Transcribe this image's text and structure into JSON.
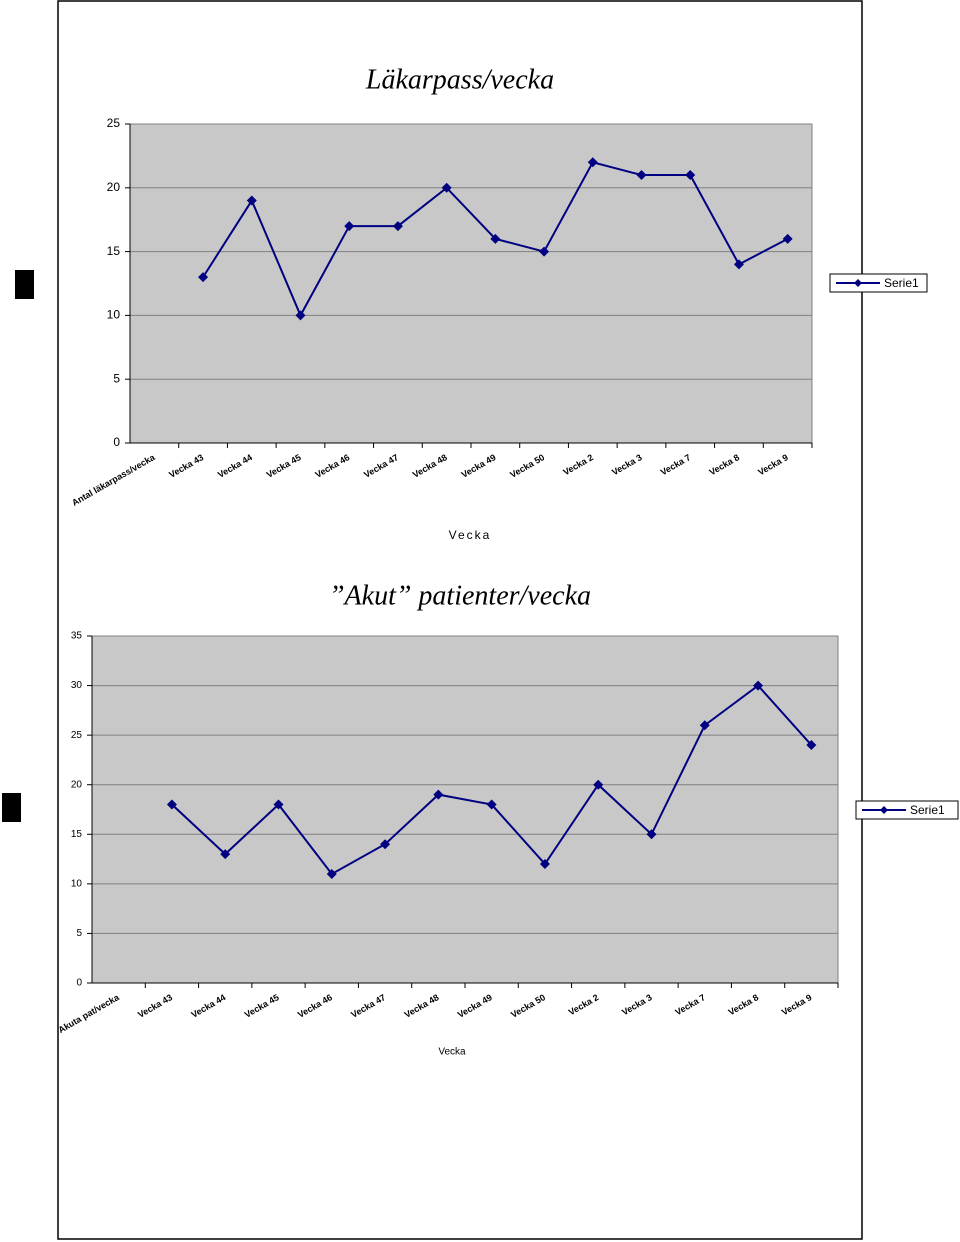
{
  "chart_data": [
    {
      "type": "line",
      "title": "Läkarpass/vecka",
      "x_label": "Vecka",
      "categories": [
        "Antal läkarpass/vecka",
        "Vecka 43",
        "Vecka 44",
        "Vecka 45",
        "Vecka 46",
        "Vecka 47",
        "Vecka 48",
        "Vecka 49",
        "Vecka 50",
        "Vecka 2",
        "Vecka 3",
        "Vecka 7",
        "Vecka 8",
        "Vecka 9"
      ],
      "series": [
        {
          "name": "Serie1",
          "color": "#000080",
          "values": [
            null,
            13,
            19,
            10,
            17,
            17,
            20,
            16,
            15,
            22,
            21,
            21,
            14,
            16
          ]
        }
      ],
      "ylim": [
        0,
        25
      ],
      "yticks": [
        0,
        5,
        10,
        15,
        20,
        25
      ],
      "grid": true,
      "legend": "right"
    },
    {
      "type": "line",
      "title": "”Akut” patienter/vecka",
      "x_label": "Vecka",
      "categories": [
        "Akuta pat/vecka",
        "Vecka 43",
        "Vecka 44",
        "Vecka 45",
        "Vecka 46",
        "Vecka 47",
        "Vecka 48",
        "Vecka 49",
        "Vecka 50",
        "Vecka 2",
        "Vecka 3",
        "Vecka 7",
        "Vecka 8",
        "Vecka 9"
      ],
      "series": [
        {
          "name": "Serie1",
          "color": "#000080",
          "values": [
            null,
            18,
            13,
            18,
            11,
            14,
            19,
            18,
            12,
            20,
            15,
            26,
            30,
            24
          ]
        }
      ],
      "ylim": [
        0,
        35
      ],
      "yticks": [
        0,
        5,
        10,
        15,
        20,
        25,
        30,
        35
      ],
      "grid": true,
      "legend": "right"
    }
  ]
}
